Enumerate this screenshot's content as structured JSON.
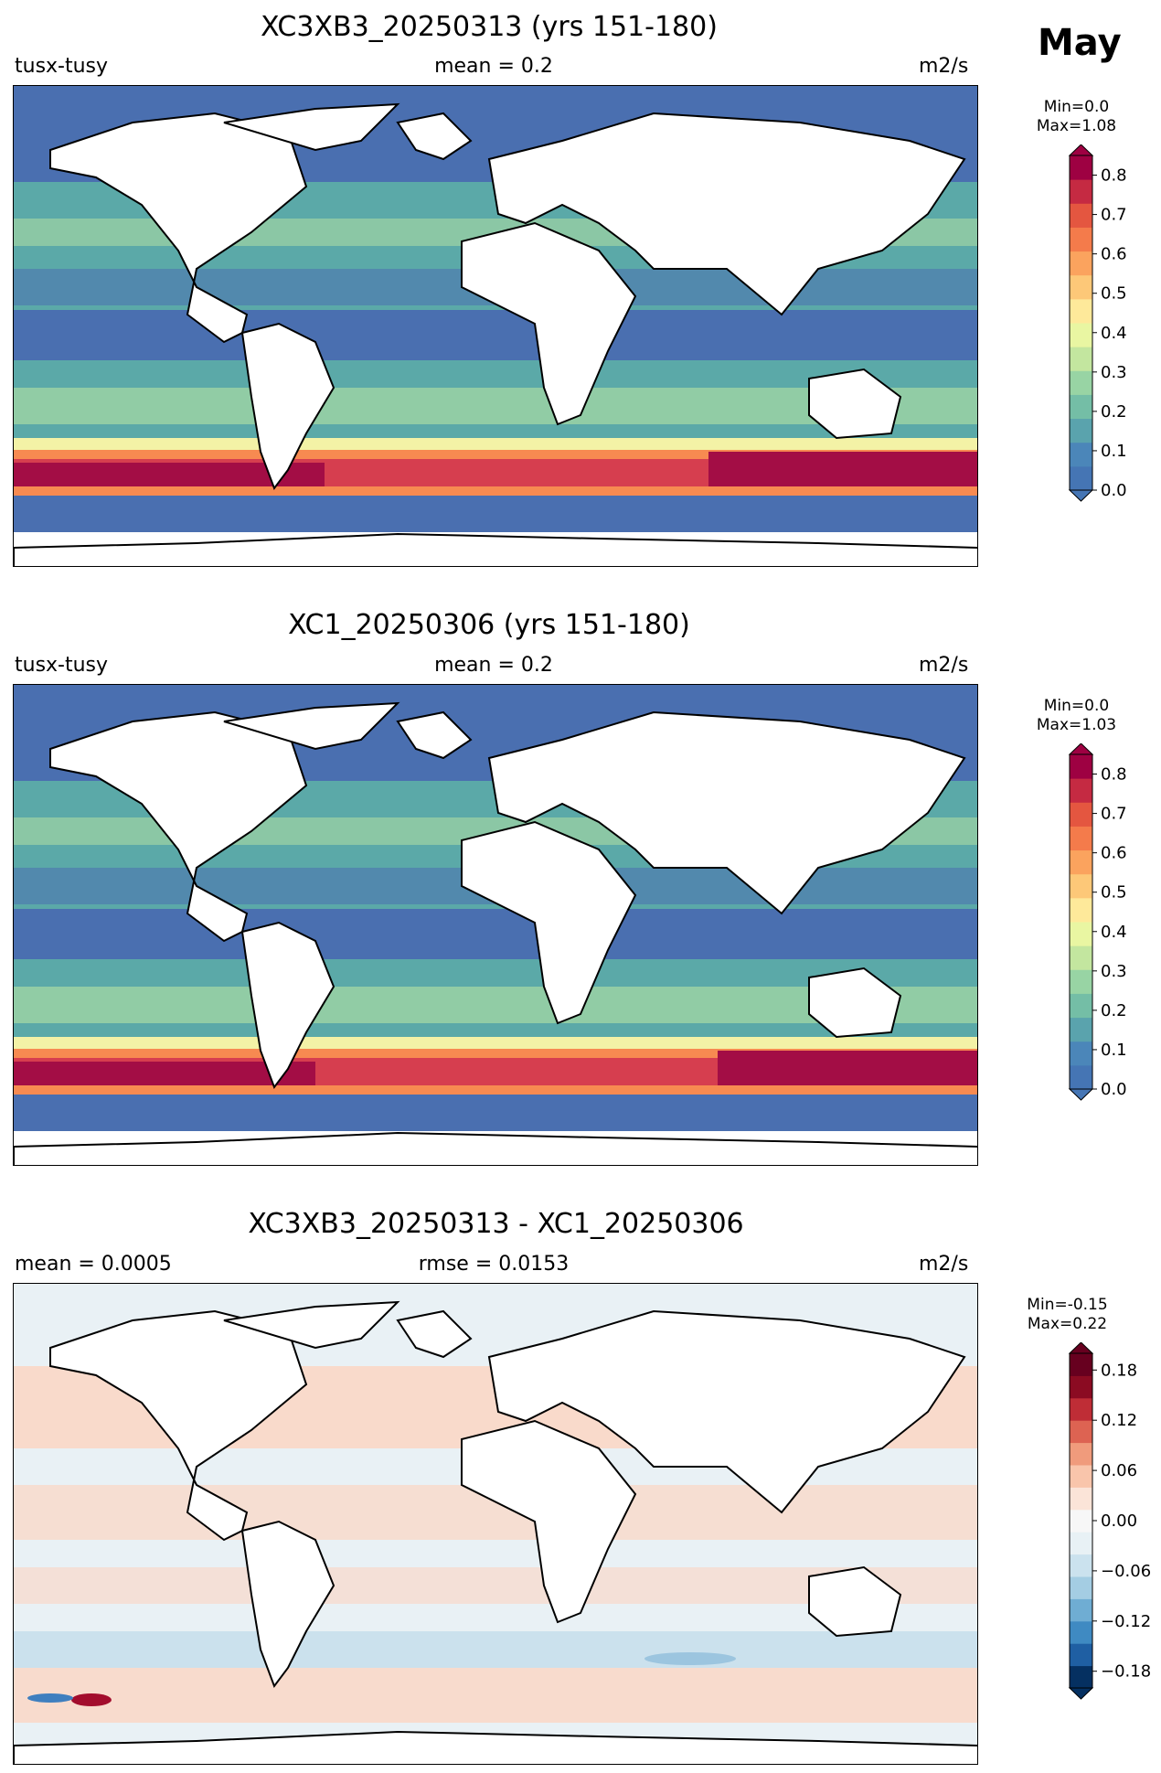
{
  "month": "May",
  "panels": [
    {
      "title": "XC3XB3_20250313 (yrs 151-180)",
      "left_label": "tusx-tusy",
      "center_label": "mean = 0.2",
      "right_label": "m2/s",
      "minmax": [
        "Min=0.0",
        "Max=1.08"
      ],
      "colorbar_ticks": [
        "0.8",
        "0.7",
        "0.6",
        "0.5",
        "0.4",
        "0.3",
        "0.2",
        "0.1",
        "0.0"
      ],
      "colormap": "RdYlBu_r",
      "range": [
        0.0,
        0.85
      ]
    },
    {
      "title": "XC1_20250306 (yrs 151-180)",
      "left_label": "tusx-tusy",
      "center_label": "mean = 0.2",
      "right_label": "m2/s",
      "minmax": [
        "Min=0.0",
        "Max=1.03"
      ],
      "colorbar_ticks": [
        "0.8",
        "0.7",
        "0.6",
        "0.5",
        "0.4",
        "0.3",
        "0.2",
        "0.1",
        "0.0"
      ],
      "colormap": "RdYlBu_r",
      "range": [
        0.0,
        0.85
      ]
    },
    {
      "title": "XC3XB3_20250313 - XC1_20250306",
      "left_label": "mean = 0.0005",
      "center_label": "rmse = 0.0153",
      "right_label": "m2/s",
      "minmax": [
        "Min=-0.15",
        "Max=0.22"
      ],
      "colorbar_ticks": [
        "0.18",
        "0.12",
        "0.06",
        "0.00",
        "−0.06",
        "−0.12",
        "−0.18"
      ],
      "colormap": "RdBu_r",
      "range": [
        -0.2,
        0.2
      ]
    }
  ],
  "colors": {
    "land": "#ffffff",
    "coastline": "#000000",
    "low": "#4a6fb0",
    "teal": "#5ba9a8",
    "green": "#9fd4a4",
    "yellow": "#f3f2a6",
    "orange": "#f78a51",
    "red": "#d63e4f",
    "darkred": "#a30d45",
    "diff_light": "#e9f1f5",
    "diff_pos": "#fbd6c3",
    "diff_neg": "#c8dfec"
  }
}
